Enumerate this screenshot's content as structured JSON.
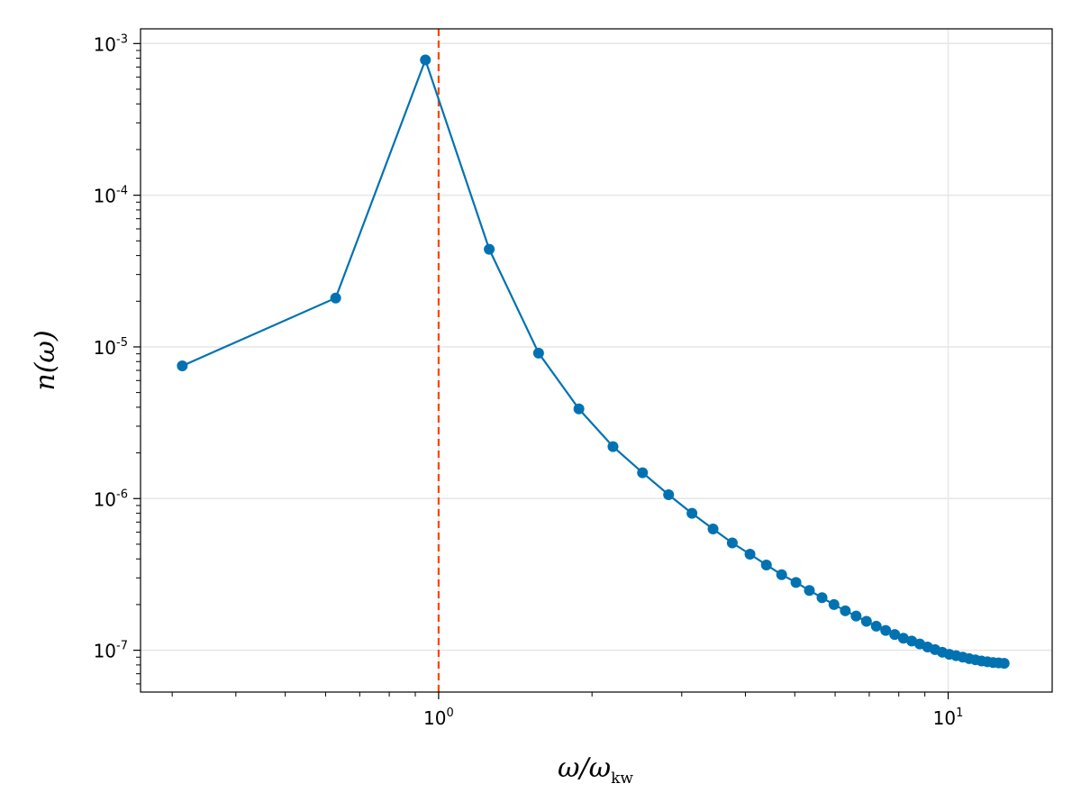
{
  "chart_data": {
    "type": "scatter",
    "xlabel": {
      "main": "ω/ω",
      "sub": "kw"
    },
    "ylabel": "n(ω)",
    "xscale": "log",
    "yscale": "log",
    "xlim": [
      0.26,
      16.0
    ],
    "ylim": [
      5.3e-08,
      0.00125
    ],
    "grid": true,
    "x_ticks": [
      {
        "value": 1,
        "base": "10",
        "exp": "0"
      },
      {
        "value": 10,
        "base": "10",
        "exp": "1"
      }
    ],
    "y_ticks": [
      {
        "value": 0.001,
        "base": "10",
        "exp": "-3"
      },
      {
        "value": 0.0001,
        "base": "10",
        "exp": "-4"
      },
      {
        "value": 1e-05,
        "base": "10",
        "exp": "-5"
      },
      {
        "value": 1e-06,
        "base": "10",
        "exp": "-6"
      },
      {
        "value": 1e-07,
        "base": "10",
        "exp": "-7"
      }
    ],
    "vline": {
      "x": 1.0,
      "color": "#ff4500",
      "style": "dashed"
    },
    "series": [
      {
        "color": "#0072b2",
        "x": [
          0.314,
          0.628,
          0.942,
          1.257,
          1.571,
          1.885,
          2.199,
          2.513,
          2.827,
          3.142,
          3.456,
          3.77,
          4.084,
          4.398,
          4.712,
          5.027,
          5.341,
          5.655,
          5.969,
          6.283,
          6.597,
          6.912,
          7.226,
          7.54,
          7.854,
          8.168,
          8.482,
          8.796,
          9.111,
          9.425,
          9.739,
          10.053,
          10.367,
          10.681,
          10.996,
          11.31,
          11.624,
          11.938,
          12.252,
          12.566,
          12.881
        ],
        "y": [
          7.5e-06,
          2.1e-05,
          0.00078,
          4.4e-05,
          9.1e-06,
          3.9e-06,
          2.2e-06,
          1.48e-06,
          1.06e-06,
          8e-07,
          6.3e-07,
          5.1e-07,
          4.3e-07,
          3.65e-07,
          3.15e-07,
          2.8e-07,
          2.48e-07,
          2.22e-07,
          2e-07,
          1.82e-07,
          1.68e-07,
          1.55e-07,
          1.44e-07,
          1.35e-07,
          1.27e-07,
          1.2e-07,
          1.15e-07,
          1.1e-07,
          1.05e-07,
          1.01e-07,
          9.7e-08,
          9.4e-08,
          9.2e-08,
          9e-08,
          8.8e-08,
          8.65e-08,
          8.5e-08,
          8.4e-08,
          8.3e-08,
          8.25e-08,
          8.2e-08
        ]
      }
    ]
  }
}
